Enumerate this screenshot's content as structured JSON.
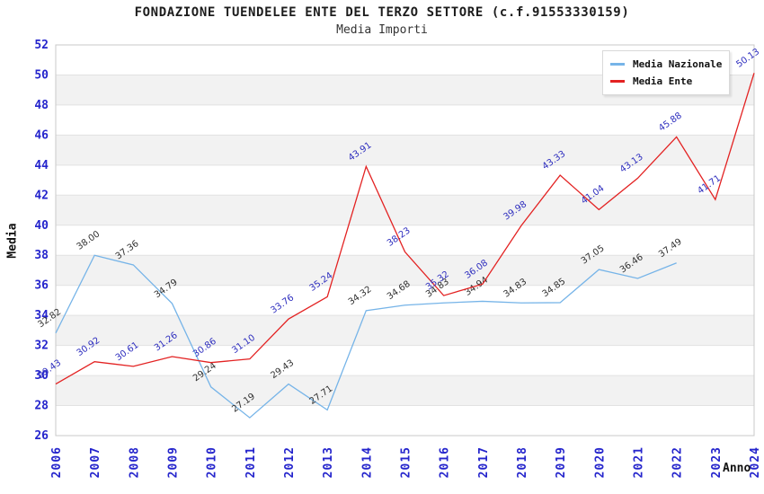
{
  "title": "FONDAZIONE TUENDELEE ENTE DEL TERZO SETTORE (c.f.91553330159)",
  "subtitle": "Media Importi",
  "chart_data": {
    "type": "line",
    "x": [
      "2006",
      "2007",
      "2008",
      "2009",
      "2010",
      "2011",
      "2012",
      "2013",
      "2014",
      "2015",
      "2016",
      "2017",
      "2018",
      "2019",
      "2020",
      "2021",
      "2022",
      "2023",
      "2024"
    ],
    "series": [
      {
        "name": "Media Nazionale",
        "color": "#76b4e8",
        "label_color": "#303030",
        "values": [
          32.82,
          38.0,
          37.36,
          34.79,
          29.24,
          27.19,
          29.43,
          27.71,
          34.32,
          34.68,
          34.83,
          34.94,
          34.83,
          34.85,
          37.05,
          36.46,
          37.49,
          null,
          null
        ]
      },
      {
        "name": "Media Ente",
        "color": "#e32222",
        "label_color": "#2d2dbe",
        "values": [
          29.43,
          30.92,
          30.61,
          31.26,
          30.86,
          31.1,
          33.76,
          35.24,
          43.91,
          38.23,
          35.32,
          36.08,
          39.98,
          43.33,
          41.04,
          43.13,
          45.88,
          41.71,
          50.13
        ]
      }
    ],
    "xlabel": "Anno",
    "ylabel": "Media",
    "ylim": [
      26,
      52
    ],
    "ytick_step": 2,
    "grid": true,
    "legend_position": "top-right",
    "band_colors": [
      "#ffffff",
      "#f2f2f2"
    ],
    "grid_color": "#e2e2e2",
    "plot_border_color": "#c9c9c9",
    "axis_tick_color": "#2424cc"
  }
}
